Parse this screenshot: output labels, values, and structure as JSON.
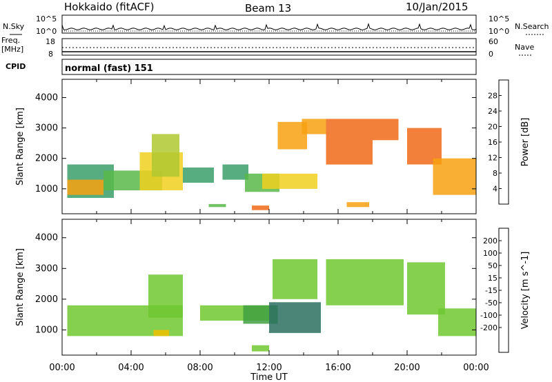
{
  "header": {
    "station": "Hokkaido (fitACF)",
    "beam": "Beam 13",
    "date": "10/Jan/2015"
  },
  "strip": {
    "nsky_label": "N.Sky",
    "nsearch_label": "N.Search",
    "freq_label_1": "Freq.",
    "freq_label_2": "[MHz]",
    "nave_label": "Nave",
    "cpid_label": "CPID",
    "cpid_value": "normal (fast) 151",
    "noise_ticks": [
      "10^5",
      "10^0"
    ],
    "freq_ticks": [
      "18",
      "8"
    ],
    "nave_ticks": [
      "60",
      "0"
    ]
  },
  "chart_data": [
    {
      "type": "heatmap",
      "name": "power",
      "ylabel": "Slant Range [km]",
      "xlim": [
        0,
        24
      ],
      "ylim": [
        180,
        4600
      ],
      "yticks": [
        1000,
        2000,
        3000,
        4000
      ],
      "colorbar": {
        "label": "Power [dB]",
        "ticks": [
          4,
          8,
          12,
          16,
          20,
          24,
          28
        ],
        "colors": [
          "#0000ff",
          "#3056c0",
          "#2e7fa0",
          "#3a9f6a",
          "#58b848",
          "#b0c830",
          "#f0d020",
          "#f8a010",
          "#f06818",
          "#e83020",
          "#ff0000"
        ],
        "vmin": 0,
        "vmax": 32
      },
      "regions": [
        {
          "t": [
            0.3,
            3.0
          ],
          "r": [
            700,
            1800
          ],
          "v": 10
        },
        {
          "t": [
            0.3,
            2.4
          ],
          "r": [
            800,
            1300
          ],
          "v": 22
        },
        {
          "t": [
            2.4,
            5.8
          ],
          "r": [
            950,
            1600
          ],
          "v": 12
        },
        {
          "t": [
            4.5,
            7.0
          ],
          "r": [
            950,
            2200
          ],
          "v": 20
        },
        {
          "t": [
            5.2,
            6.8
          ],
          "r": [
            1400,
            2800
          ],
          "v": 15
        },
        {
          "t": [
            7.0,
            8.8
          ],
          "r": [
            1200,
            1700
          ],
          "v": 10
        },
        {
          "t": [
            9.3,
            10.8
          ],
          "r": [
            1300,
            1800
          ],
          "v": 11
        },
        {
          "t": [
            10.6,
            12.6
          ],
          "r": [
            900,
            1500
          ],
          "v": 13
        },
        {
          "t": [
            11.6,
            14.8
          ],
          "r": [
            1000,
            1500
          ],
          "v": 18
        },
        {
          "t": [
            12.5,
            14.2
          ],
          "r": [
            2300,
            3200
          ],
          "v": 23
        },
        {
          "t": [
            13.9,
            15.3
          ],
          "r": [
            2800,
            3300
          ],
          "v": 22
        },
        {
          "t": [
            15.3,
            18.0
          ],
          "r": [
            1800,
            3300
          ],
          "v": 26
        },
        {
          "t": [
            18.0,
            19.5
          ],
          "r": [
            2600,
            3300
          ],
          "v": 25
        },
        {
          "t": [
            20.0,
            22.0
          ],
          "r": [
            1800,
            3000
          ],
          "v": 24
        },
        {
          "t": [
            21.5,
            24.0
          ],
          "r": [
            800,
            2000
          ],
          "v": 23
        },
        {
          "t": [
            8.5,
            9.5
          ],
          "r": [
            400,
            500
          ],
          "v": 12
        },
        {
          "t": [
            11.0,
            12.0
          ],
          "r": [
            300,
            450
          ],
          "v": 24
        },
        {
          "t": [
            16.5,
            17.8
          ],
          "r": [
            400,
            560
          ],
          "v": 22
        }
      ]
    },
    {
      "type": "heatmap",
      "name": "velocity",
      "ylabel": "Slant Range [km]",
      "xlabel": "Time UT",
      "xlim": [
        0,
        24
      ],
      "ylim": [
        180,
        4600
      ],
      "xticks": [
        "00:00",
        "04:00",
        "08:00",
        "12:00",
        "16:00",
        "20:00",
        "00:00"
      ],
      "yticks": [
        1000,
        2000,
        3000,
        4000
      ],
      "colorbar": {
        "label": "Velocity [m s^-1]",
        "ticks": [
          200,
          100,
          50,
          15,
          -15,
          -50,
          -100,
          -200
        ],
        "colors": [
          "#1010c0",
          "#2040a0",
          "#2a7060",
          "#40a040",
          "#70c830",
          "#c0c0b8",
          "#f0c000",
          "#f09000",
          "#f05020",
          "#e81010"
        ],
        "vmin": -250,
        "vmax": 250
      },
      "regions": [
        {
          "t": [
            0.3,
            7.0
          ],
          "r": [
            800,
            1800
          ],
          "v": 0
        },
        {
          "t": [
            5.0,
            7.0
          ],
          "r": [
            1400,
            2800
          ],
          "v": 0
        },
        {
          "t": [
            8.0,
            12.0
          ],
          "r": [
            1300,
            1800
          ],
          "v": 0
        },
        {
          "t": [
            10.5,
            12.5
          ],
          "r": [
            1200,
            1800
          ],
          "v": 60
        },
        {
          "t": [
            12.0,
            15.0
          ],
          "r": [
            900,
            1900
          ],
          "v": 130
        },
        {
          "t": [
            12.2,
            14.8
          ],
          "r": [
            2000,
            3300
          ],
          "v": 0
        },
        {
          "t": [
            15.3,
            19.8
          ],
          "r": [
            1800,
            3300
          ],
          "v": 0
        },
        {
          "t": [
            20.0,
            22.2
          ],
          "r": [
            1500,
            3200
          ],
          "v": 40
        },
        {
          "t": [
            21.8,
            24.0
          ],
          "r": [
            800,
            1700
          ],
          "v": 0
        },
        {
          "t": [
            5.3,
            6.2
          ],
          "r": [
            800,
            1000
          ],
          "v": -60
        },
        {
          "t": [
            11.0,
            12.0
          ],
          "r": [
            300,
            500
          ],
          "v": 30
        }
      ]
    }
  ]
}
